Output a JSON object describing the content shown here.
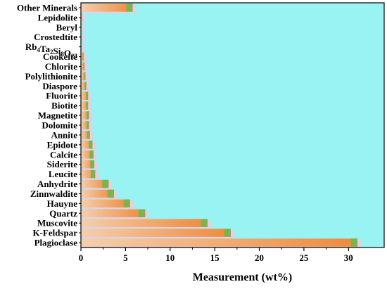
{
  "chart_data": {
    "type": "bar",
    "orientation": "horizontal",
    "categories": [
      "Plagioclase",
      "K-Feldspar",
      "Muscovite",
      "Quartz",
      "Hauyne",
      "Zinnwaldite",
      "Anhydrite",
      "Leucite",
      "Siderite",
      "Calcite",
      "Epidote",
      "Annite",
      "Dolomite",
      "Magnetite",
      "Biotite",
      "Fluorite",
      "Diaspore",
      "Polylithionite",
      "Chlorite",
      "Cookeite",
      "Rb4Ta2Si8O23",
      "Crostedtite",
      "Beryl",
      "Lepidolite",
      "Other Minerals"
    ],
    "category_label_formula": {
      "index": 20,
      "parts": [
        [
          "Rb",
          ""
        ],
        [
          "4",
          "sub"
        ],
        [
          "Ta",
          ""
        ],
        [
          "2",
          "sub"
        ],
        [
          "Si",
          ""
        ],
        [
          "8",
          "sub"
        ],
        [
          "O",
          ""
        ],
        [
          "23",
          "sub"
        ]
      ]
    },
    "values": [
      31.0,
      16.8,
      14.2,
      7.2,
      5.5,
      3.7,
      3.1,
      1.6,
      1.5,
      1.4,
      1.3,
      1.0,
      0.9,
      0.9,
      0.8,
      0.8,
      0.6,
      0.5,
      0.4,
      0.3,
      0.05,
      0.05,
      0.05,
      0.1,
      5.8
    ],
    "xlabel": "Measurement (wt%)",
    "ylabel": "",
    "xlim": [
      0,
      34
    ],
    "xticks": [
      0,
      5,
      10,
      15,
      20,
      25,
      30
    ],
    "xtick_labels": [
      "0",
      "5",
      "10",
      "15",
      "20",
      "25",
      "30"
    ],
    "grid": false,
    "colors": {
      "plot_background": "#99f3f2",
      "bar_start": "#f5cfae",
      "bar_end": "#ee8a3c",
      "bar_cap": "#7fb24a",
      "shadow": "#f6c6df"
    }
  }
}
